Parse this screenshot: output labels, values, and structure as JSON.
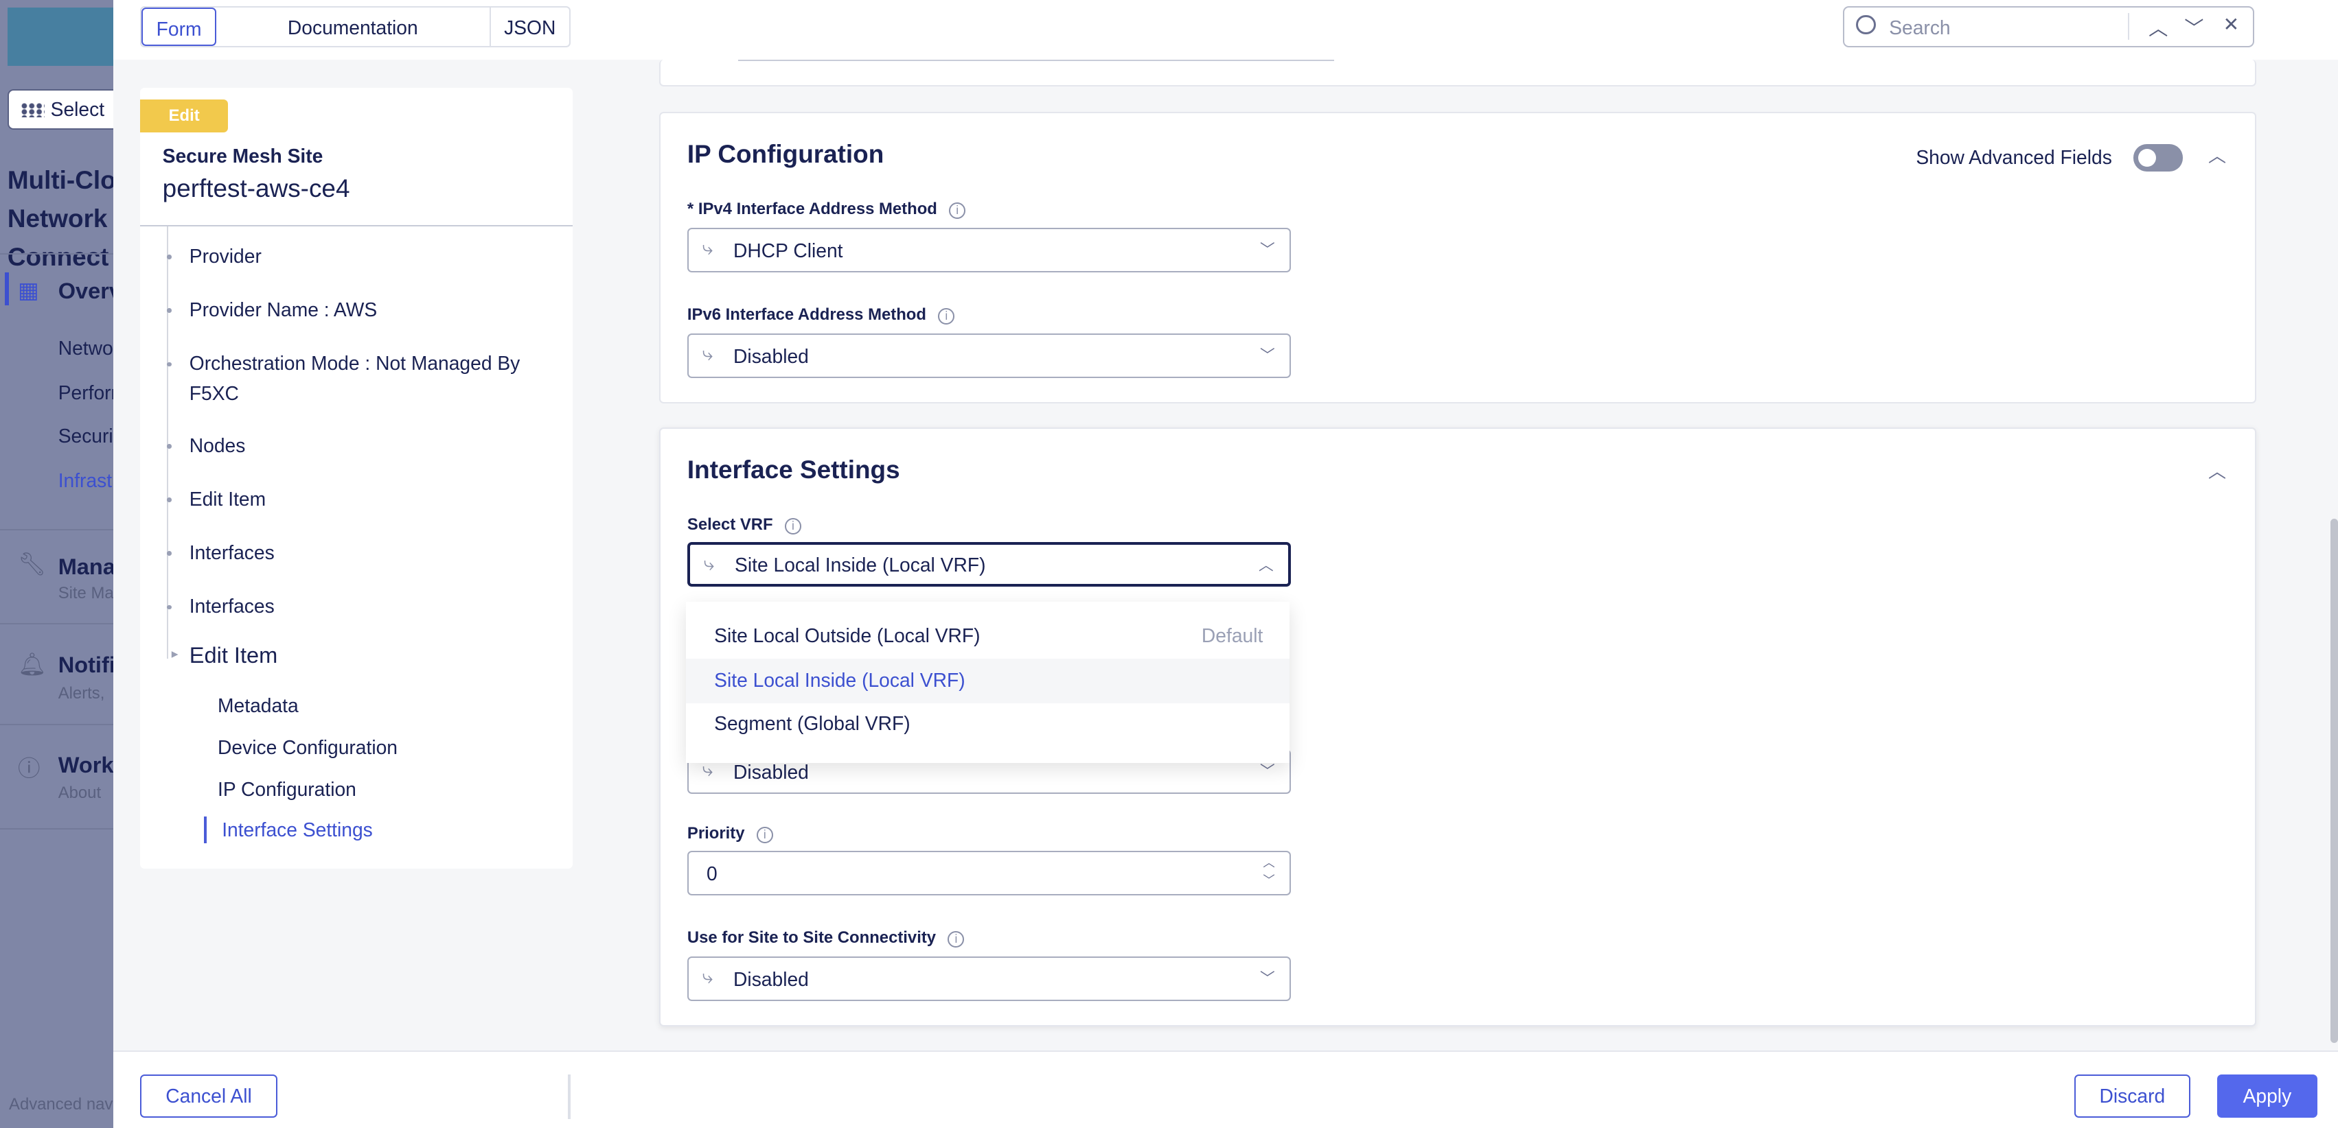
{
  "background_nav": {
    "select_label": "Select",
    "title": "Multi-Cloud Network Connect",
    "items": [
      {
        "label": "Overview"
      },
      {
        "label": "Networking"
      },
      {
        "label": "Performance"
      },
      {
        "label": "Security"
      },
      {
        "label": "Infrastructure"
      }
    ],
    "sections": [
      {
        "label": "Manage",
        "sub": "Site Management"
      },
      {
        "label": "Notifications",
        "sub": "Alerts,"
      },
      {
        "label": "Workspaces",
        "sub": "About"
      }
    ],
    "footer": "Advanced nav"
  },
  "topbar": {
    "tabs": [
      {
        "label": "Form"
      },
      {
        "label": "Documentation"
      },
      {
        "label": "JSON"
      }
    ],
    "active_tab": "Form",
    "search_placeholder": "Search"
  },
  "left_card": {
    "badge": "Edit",
    "type": "Secure Mesh Site",
    "name": "perftest-aws-ce4",
    "tree": [
      "Provider",
      "Provider Name : AWS",
      "Orchestration Mode : Not Managed By F5XC",
      "Nodes",
      "Edit Item",
      "Interfaces",
      "Interfaces",
      "Edit Item"
    ],
    "sub_items": [
      "Metadata",
      "Device Configuration",
      "IP Configuration",
      "Interface Settings"
    ],
    "active_sub": "Interface Settings"
  },
  "ip_config": {
    "title": "IP Configuration",
    "advanced_label": "Show Advanced Fields",
    "advanced_on": false,
    "ipv4_label": "* IPv4 Interface Address Method",
    "ipv4_value": "DHCP Client",
    "ipv6_label": "IPv6 Interface Address Method",
    "ipv6_value": "Disabled"
  },
  "interface_settings": {
    "title": "Interface Settings",
    "vrf_label": "Select VRF",
    "vrf_value": "Site Local Inside (Local VRF)",
    "vrf_options": [
      {
        "label": "Site Local Outside (Local VRF)",
        "tag": "Default"
      },
      {
        "label": "Site Local Inside (Local VRF)",
        "tag": ""
      },
      {
        "label": "Segment (Global VRF)",
        "tag": ""
      }
    ],
    "hidden_field_value": "Disabled",
    "priority_label": "Priority",
    "priority_value": "0",
    "s2s_label": "Use for Site to Site Connectivity",
    "s2s_value": "Disabled"
  },
  "footer": {
    "cancel_all": "Cancel All",
    "discard": "Discard",
    "apply": "Apply"
  },
  "colors": {
    "accent": "#3c50d0",
    "badge": "#f2c94c",
    "primary_button": "#5468ec"
  }
}
